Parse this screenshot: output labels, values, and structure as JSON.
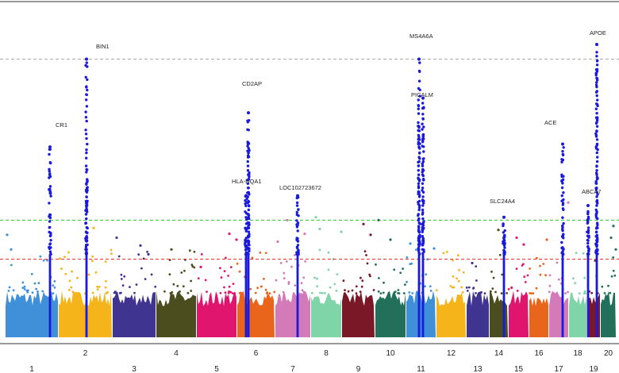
{
  "chart_data": {
    "type": "scatter",
    "title": "",
    "xlabel": "",
    "ylabel": "",
    "description_scale": "y = -log10(p), 0 at bottom of columns",
    "ylim": [
      0,
      30
    ],
    "thresholds": [
      {
        "name": "top",
        "value": 28.5,
        "color": "#aaaaaa",
        "style": "dashed"
      },
      {
        "name": "genome-wide",
        "value": 12.0,
        "color": "#22cc22",
        "style": "dashed"
      },
      {
        "name": "suggestive",
        "value": 8.0,
        "color": "#ee2222",
        "style": "dashed"
      }
    ],
    "chromosomes": [
      {
        "label": "1",
        "start": 7,
        "end": 73,
        "color": "#3f8fd9",
        "row": 2
      },
      {
        "label": "2",
        "start": 74,
        "end": 141,
        "color": "#f4b41a",
        "row": 1
      },
      {
        "label": "3",
        "start": 142,
        "end": 196,
        "color": "#3f3590",
        "row": 2
      },
      {
        "label": "4",
        "start": 197,
        "end": 247,
        "color": "#4b4d1f",
        "row": 1
      },
      {
        "label": "5",
        "start": 248,
        "end": 298,
        "color": "#e0156e",
        "row": 2
      },
      {
        "label": "6",
        "start": 299,
        "end": 346,
        "color": "#e8651b",
        "row": 1
      },
      {
        "label": "7",
        "start": 347,
        "end": 391,
        "color": "#d47ab8",
        "row": 2
      },
      {
        "label": "8",
        "start": 392,
        "end": 430,
        "color": "#7fd4a8",
        "row": 1
      },
      {
        "label": "9",
        "start": 431,
        "end": 472,
        "color": "#7a1828",
        "row": 2
      },
      {
        "label": "10",
        "start": 473,
        "end": 511,
        "color": "#22705a",
        "row": 1
      },
      {
        "label": "11",
        "start": 512,
        "end": 549,
        "color": "#3f8fd9",
        "row": 2
      },
      {
        "label": "12",
        "start": 550,
        "end": 587,
        "color": "#f4b41a",
        "row": 1
      },
      {
        "label": "13",
        "start": 588,
        "end": 616,
        "color": "#3f3590",
        "row": 2
      },
      {
        "label": "14",
        "start": 617,
        "end": 640,
        "color": "#4b4d1f",
        "row": 1
      },
      {
        "label": "15",
        "start": 641,
        "end": 666,
        "color": "#e0156e",
        "row": 2
      },
      {
        "label": "16",
        "start": 667,
        "end": 691,
        "color": "#e8651b",
        "row": 1
      },
      {
        "label": "17",
        "start": 692,
        "end": 716,
        "color": "#d47ab8",
        "row": 2
      },
      {
        "label": "18",
        "start": 717,
        "end": 739,
        "color": "#7fd4a8",
        "row": 1
      },
      {
        "label": "19",
        "start": 740,
        "end": 756,
        "color": "#7a1828",
        "row": 2
      },
      {
        "label": "20",
        "start": 757,
        "end": 776,
        "color": "#22705a",
        "row": 1
      }
    ],
    "highlight_color": "#1a1add",
    "genes": [
      {
        "label": "CR1",
        "x": 63,
        "top": 19.5
      },
      {
        "label": "BIN1",
        "x": 109,
        "top": 28.5
      },
      {
        "label": "CD2AP",
        "x": 313,
        "top": 23.0
      },
      {
        "label": "HLA-DQA1",
        "x": 310,
        "top": 14.5
      },
      {
        "label": "LOC102723672",
        "x": 375,
        "top": 14.5
      },
      {
        "label": "MS4A6A",
        "x": 528,
        "top": 28.5
      },
      {
        "label": "PICALM",
        "x": 533,
        "top": 24.5
      },
      {
        "label": "SLC24A4",
        "x": 635,
        "top": 12.3
      },
      {
        "label": "ACE",
        "x": 709,
        "top": 19.8
      },
      {
        "label": "ABCA7",
        "x": 741,
        "top": 13.5
      },
      {
        "label": "APOE",
        "x": 752,
        "top": 30.0
      }
    ],
    "extra_points": [
      [
        9,
        10.5
      ],
      [
        14,
        9.0
      ],
      [
        118,
        11.2
      ],
      [
        147,
        10.2
      ],
      [
        177,
        9.4
      ],
      [
        187,
        8.5
      ],
      [
        216,
        9.0
      ],
      [
        253,
        7.2
      ],
      [
        289,
        10.6
      ],
      [
        298,
        10.0
      ],
      [
        350,
        9.8
      ],
      [
        362,
        12.0
      ],
      [
        384,
        10.6
      ],
      [
        398,
        12.3
      ],
      [
        403,
        11.1
      ],
      [
        430,
        10.8
      ],
      [
        458,
        11.6
      ],
      [
        467,
        10.5
      ],
      [
        477,
        12.0
      ],
      [
        492,
        10.0
      ],
      [
        517,
        9.6
      ],
      [
        547,
        9.1
      ],
      [
        595,
        7.6
      ],
      [
        628,
        11.0
      ],
      [
        651,
        10.2
      ],
      [
        660,
        9.5
      ],
      [
        689,
        10.0
      ],
      [
        716,
        13.8
      ],
      [
        770,
        10.2
      ],
      [
        773,
        11.4
      ],
      [
        776,
        9.0
      ]
    ]
  }
}
